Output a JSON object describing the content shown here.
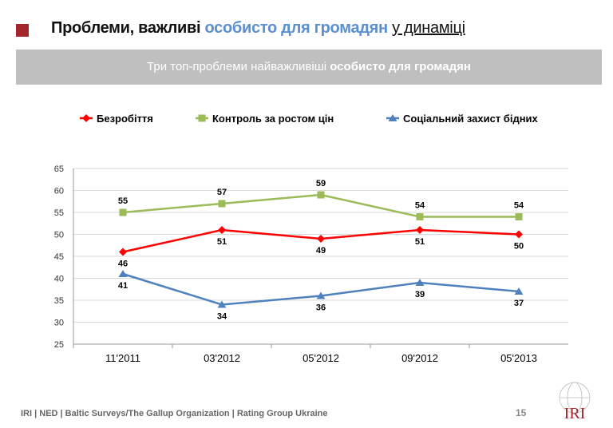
{
  "header": {
    "title_part1": "Проблеми, важливі ",
    "title_highlight": "особисто для громадян",
    "title_part2": "у динаміці",
    "banner_text": "Три топ-проблеми найважливіші ",
    "banner_bold": "особисто для громадян"
  },
  "chart_data": {
    "type": "line",
    "categories": [
      "11'2011",
      "03'2012",
      "05'2012",
      "09'2012",
      "05'2013"
    ],
    "ylim": [
      25,
      65
    ],
    "yticks": [
      25,
      30,
      35,
      40,
      45,
      50,
      55,
      60,
      65
    ],
    "grid": true,
    "legend_position": "top",
    "series": [
      {
        "name": "Безробіття",
        "values": [
          46,
          51,
          49,
          51,
          50
        ],
        "color": "#ff0000",
        "marker": "diamond"
      },
      {
        "name": "Контроль за ростом цін",
        "values": [
          55,
          57,
          59,
          54,
          54
        ],
        "color": "#9bbb59",
        "marker": "square"
      },
      {
        "name": "Соціальний захист бідних",
        "values": [
          41,
          34,
          36,
          39,
          37
        ],
        "color": "#4f81bd",
        "marker": "triangle"
      }
    ]
  },
  "footer": {
    "source": "IRI | NED | Baltic Surveys/The Gallup Organization | Rating Group Ukraine",
    "page": "15",
    "logo_text": "IRI"
  }
}
